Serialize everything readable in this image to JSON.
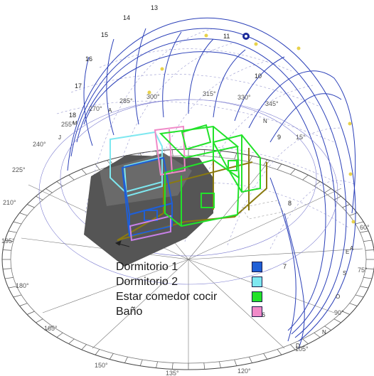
{
  "azimuth_labels": [
    {
      "text": "315°"
    },
    {
      "text": "330°"
    },
    {
      "text": "345°"
    },
    {
      "text": "300°"
    },
    {
      "text": "285°"
    },
    {
      "text": "270°"
    },
    {
      "text": "255°"
    },
    {
      "text": "240°"
    },
    {
      "text": "225°"
    },
    {
      "text": "210°"
    },
    {
      "text": "195°"
    },
    {
      "text": "180°"
    },
    {
      "text": "165°"
    },
    {
      "text": "150°"
    },
    {
      "text": "135°"
    },
    {
      "text": "120°"
    },
    {
      "text": "105°"
    },
    {
      "text": "90°"
    },
    {
      "text": "75°"
    },
    {
      "text": "60°"
    },
    {
      "text": "15°"
    }
  ],
  "hour_labels": [
    {
      "text": "13"
    },
    {
      "text": "14"
    },
    {
      "text": "15"
    },
    {
      "text": "16"
    },
    {
      "text": "17"
    },
    {
      "text": "18"
    },
    {
      "text": "11"
    },
    {
      "text": "10"
    },
    {
      "text": "9"
    },
    {
      "text": "8"
    },
    {
      "text": "7"
    },
    {
      "text": "6"
    }
  ],
  "compass_labels": [
    {
      "text": "N"
    },
    {
      "text": "S"
    },
    {
      "text": "O"
    },
    {
      "text": "E"
    },
    {
      "text": "A"
    },
    {
      "text": "J"
    },
    {
      "text": "M"
    },
    {
      "text": "A"
    },
    {
      "text": "N"
    },
    {
      "text": "D"
    }
  ],
  "legend": [
    {
      "label": "Dormitorio 1",
      "color": "#1f5fd6"
    },
    {
      "label": "Dormitorio 2",
      "color": "#7ee8f0"
    },
    {
      "label": "Estar comedor cocir",
      "color": "#22e22a"
    },
    {
      "label": "Baño",
      "color": "#f08ac8"
    }
  ],
  "colors": {
    "sun_path": "#2a3fb8",
    "dome_grid": "#8c8cc8",
    "ground": "#5a5a5a",
    "shadow": "#4a4a4a",
    "dormitorio_1": "#1f5fd6",
    "dormitorio_2": "#7ee8f0",
    "estar": "#22e22a",
    "bano": "#f08ac8",
    "olive_frame": "#8a7a10"
  }
}
